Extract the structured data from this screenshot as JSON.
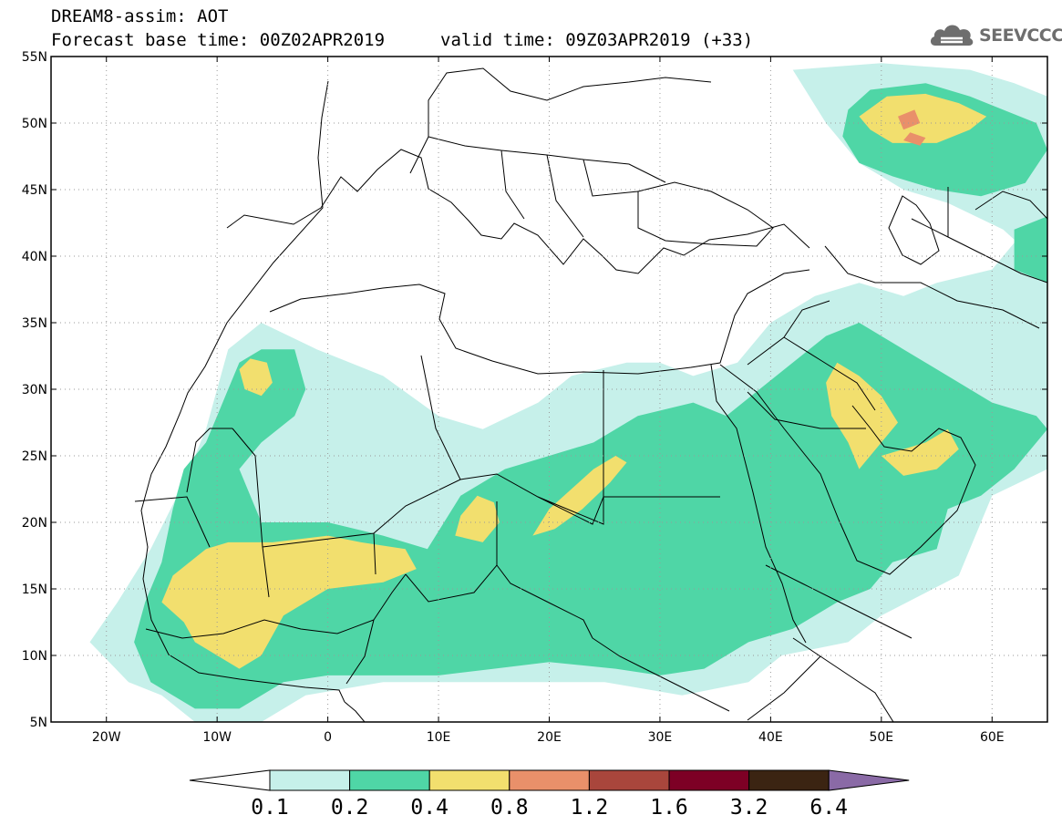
{
  "header": {
    "line1": "DREAM8-assim: AOT",
    "line2": "Forecast base time: 00Z02APR2019",
    "line3": "valid time: 09Z03APR2019 (+33)"
  },
  "logo": {
    "text": "SEEVCCC",
    "icon": "cloud-icon"
  },
  "map": {
    "projection": "lat-lon",
    "lon_range": [
      -25,
      65
    ],
    "lat_range": [
      5,
      55
    ],
    "lon_ticks": [
      {
        "v": -20,
        "label": "20W"
      },
      {
        "v": -10,
        "label": "10W"
      },
      {
        "v": 0,
        "label": "0"
      },
      {
        "v": 10,
        "label": "10E"
      },
      {
        "v": 20,
        "label": "20E"
      },
      {
        "v": 30,
        "label": "30E"
      },
      {
        "v": 40,
        "label": "40E"
      },
      {
        "v": 50,
        "label": "50E"
      },
      {
        "v": 60,
        "label": "60E"
      }
    ],
    "lat_ticks": [
      {
        "v": 55,
        "label": "55N"
      },
      {
        "v": 50,
        "label": "50N"
      },
      {
        "v": 45,
        "label": "45N"
      },
      {
        "v": 40,
        "label": "40N"
      },
      {
        "v": 35,
        "label": "35N"
      },
      {
        "v": 30,
        "label": "30N"
      },
      {
        "v": 25,
        "label": "25N"
      },
      {
        "v": 20,
        "label": "20N"
      },
      {
        "v": 15,
        "label": "15N"
      },
      {
        "v": 10,
        "label": "10N"
      },
      {
        "v": 5,
        "label": "5N"
      }
    ],
    "grid": "dotted"
  },
  "colorbar": {
    "labels": [
      "0.1",
      "0.2",
      "0.4",
      "0.8",
      "1.2",
      "1.6",
      "3.2",
      "6.4"
    ],
    "colors": [
      "#ffffff",
      "#c6f0ea",
      "#4fd6a6",
      "#f2df6e",
      "#e9906a",
      "#a9463c",
      "#7d0025",
      "#3b2412",
      "#8a6aa6"
    ]
  },
  "chart_data": {
    "type": "heatmap",
    "variable": "AOT",
    "levels": [
      0.1,
      0.2,
      0.4,
      0.8,
      1.2,
      1.6,
      3.2,
      6.4
    ],
    "regions": [
      {
        "level": 0.1,
        "polys": [
          [
            [
              -21.5,
              11
            ],
            [
              -19,
              14
            ],
            [
              -16,
              18
            ],
            [
              -13,
              23
            ],
            [
              -11,
              27
            ],
            [
              -9,
              33
            ],
            [
              -6,
              35
            ],
            [
              -1,
              33
            ],
            [
              5,
              31
            ],
            [
              10,
              28
            ],
            [
              14,
              27
            ],
            [
              19,
              29
            ],
            [
              22,
              31
            ],
            [
              27,
              32
            ],
            [
              30,
              32
            ],
            [
              33,
              31
            ],
            [
              37,
              32
            ],
            [
              40,
              35
            ],
            [
              44,
              37
            ],
            [
              48,
              38
            ],
            [
              52,
              37
            ],
            [
              55,
              38
            ],
            [
              60,
              39
            ],
            [
              62,
              41
            ],
            [
              65,
              40
            ],
            [
              65,
              24
            ],
            [
              60,
              22
            ],
            [
              57,
              16
            ],
            [
              50,
              13
            ],
            [
              47,
              11
            ],
            [
              41,
              10
            ],
            [
              38,
              8
            ],
            [
              32,
              7
            ],
            [
              25,
              8
            ],
            [
              15,
              8
            ],
            [
              5,
              8
            ],
            [
              -2,
              7
            ],
            [
              -6,
              5
            ],
            [
              -12,
              5
            ],
            [
              -15,
              7
            ],
            [
              -18,
              8
            ]
          ],
          [
            [
              42,
              54
            ],
            [
              50,
              54.5
            ],
            [
              58,
              54
            ],
            [
              62,
              53
            ],
            [
              65,
              52
            ],
            [
              65,
              39
            ],
            [
              61,
              42
            ],
            [
              56,
              44
            ],
            [
              52,
              45
            ],
            [
              48,
              47
            ],
            [
              45,
              50
            ]
          ]
        ]
      },
      {
        "level": 0.2,
        "polys": [
          [
            [
              -16,
              8
            ],
            [
              -17.5,
              11
            ],
            [
              -16.5,
              14
            ],
            [
              -15,
              17
            ],
            [
              -14,
              21
            ],
            [
              -13,
              24
            ],
            [
              -11,
              26
            ],
            [
              -10,
              28
            ],
            [
              -9,
              30
            ],
            [
              -8,
              32
            ],
            [
              -6,
              33
            ],
            [
              -3,
              33
            ],
            [
              -2,
              30
            ],
            [
              -3,
              28
            ],
            [
              -6,
              26
            ],
            [
              -8,
              24
            ],
            [
              -6,
              20
            ],
            [
              0,
              20
            ],
            [
              5,
              19
            ],
            [
              9,
              18
            ],
            [
              12,
              22
            ],
            [
              16,
              24
            ],
            [
              20,
              25
            ],
            [
              24,
              26
            ],
            [
              28,
              28
            ],
            [
              33,
              29
            ],
            [
              36,
              28
            ],
            [
              39,
              30
            ],
            [
              42,
              32
            ],
            [
              45,
              34
            ],
            [
              48,
              35
            ],
            [
              52,
              33
            ],
            [
              56,
              31
            ],
            [
              60,
              29
            ],
            [
              64,
              28
            ],
            [
              65,
              27
            ],
            [
              62,
              24
            ],
            [
              59,
              22
            ],
            [
              56,
              21
            ],
            [
              55,
              18
            ],
            [
              51,
              17
            ],
            [
              49,
              15
            ],
            [
              46,
              14
            ],
            [
              42,
              12
            ],
            [
              38,
              11
            ],
            [
              34,
              9
            ],
            [
              30,
              8.5
            ],
            [
              26,
              9
            ],
            [
              20,
              9.5
            ],
            [
              15,
              9
            ],
            [
              10,
              8.5
            ],
            [
              4,
              8.5
            ],
            [
              0,
              8.5
            ],
            [
              -4,
              8
            ],
            [
              -8,
              6
            ],
            [
              -12,
              6
            ]
          ],
          [
            [
              49,
              52.5
            ],
            [
              54,
              53
            ],
            [
              58,
              52
            ],
            [
              61,
              51
            ],
            [
              64,
              50
            ],
            [
              65,
              48
            ],
            [
              63,
              45.5
            ],
            [
              59,
              44.5
            ],
            [
              55,
              45
            ],
            [
              51,
              46
            ],
            [
              48,
              47
            ],
            [
              46.5,
              49
            ],
            [
              47,
              51
            ]
          ],
          [
            [
              62,
              42
            ],
            [
              65,
              43
            ],
            [
              65,
              38
            ],
            [
              62,
              39
            ]
          ]
        ]
      },
      {
        "level": 0.4,
        "polys": [
          [
            [
              -15,
              14
            ],
            [
              -14,
              16
            ],
            [
              -11,
              18
            ],
            [
              -9,
              18.5
            ],
            [
              -5,
              18.5
            ],
            [
              0,
              19
            ],
            [
              3,
              18.5
            ],
            [
              7,
              18
            ],
            [
              8,
              16.5
            ],
            [
              5,
              15.5
            ],
            [
              0,
              15
            ],
            [
              -4,
              13
            ],
            [
              -6,
              10
            ],
            [
              -8,
              9
            ],
            [
              -10,
              10
            ],
            [
              -12,
              11
            ],
            [
              -13,
              12.5
            ]
          ],
          [
            [
              -8,
              31.5
            ],
            [
              -7,
              32.3
            ],
            [
              -5.5,
              32
            ],
            [
              -5,
              30.5
            ],
            [
              -6,
              29.5
            ],
            [
              -7.5,
              30
            ]
          ],
          [
            [
              11.5,
              19
            ],
            [
              12,
              20.5
            ],
            [
              13.5,
              22
            ],
            [
              15,
              21.5
            ],
            [
              15.5,
              20
            ],
            [
              14,
              18.5
            ]
          ],
          [
            [
              18.5,
              19
            ],
            [
              20,
              21
            ],
            [
              22,
              22.5
            ],
            [
              24,
              24
            ],
            [
              26,
              25
            ],
            [
              27,
              24.5
            ],
            [
              25.5,
              23
            ],
            [
              23,
              21
            ],
            [
              20.5,
              19.5
            ]
          ],
          [
            [
              45,
              30.5
            ],
            [
              46,
              32
            ],
            [
              48,
              31
            ],
            [
              50,
              29.5
            ],
            [
              51.5,
              27.5
            ],
            [
              50,
              26
            ],
            [
              48,
              24
            ],
            [
              47,
              26
            ],
            [
              45.5,
              28
            ]
          ],
          [
            [
              50,
              25
            ],
            [
              52,
              25.5
            ],
            [
              54,
              26
            ],
            [
              56,
              27
            ],
            [
              57,
              25.5
            ],
            [
              55,
              24
            ],
            [
              52,
              23.5
            ]
          ],
          [
            [
              48,
              50.5
            ],
            [
              50.5,
              52
            ],
            [
              54,
              52.2
            ],
            [
              57,
              51.5
            ],
            [
              59.5,
              50.5
            ],
            [
              58,
              49.5
            ],
            [
              55,
              48.5
            ],
            [
              51,
              48.5
            ],
            [
              49,
              49.5
            ]
          ]
        ]
      },
      {
        "level": 0.8,
        "polys": [
          [
            [
              51.5,
              50.5
            ],
            [
              53,
              51
            ],
            [
              53.5,
              50
            ],
            [
              52,
              49.5
            ]
          ],
          [
            [
              52,
              48.7
            ],
            [
              53.5,
              48.3
            ],
            [
              54,
              48.9
            ],
            [
              52.6,
              49.3
            ]
          ]
        ]
      }
    ]
  }
}
